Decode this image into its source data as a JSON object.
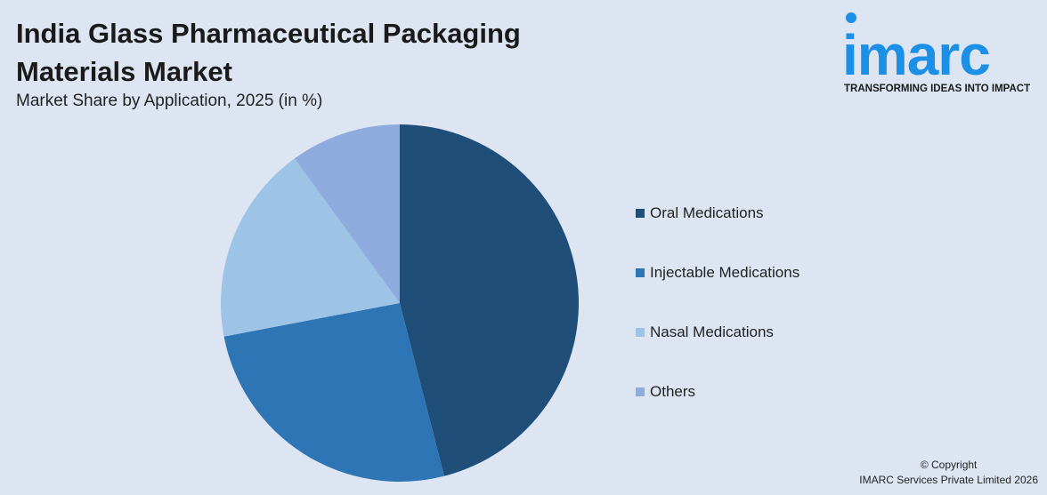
{
  "header": {
    "title": "India Glass Pharmaceutical Packaging Materials Market",
    "subtitle": "Market Share by Application, 2025 (in %)"
  },
  "logo": {
    "word": "imarc",
    "tagline": "TRANSFORMING IDEAS INTO IMPACT"
  },
  "footer": {
    "copyright_line1": "© Copyright",
    "copyright_line2": "IMARC Services Private Limited 2026"
  },
  "chart_data": {
    "type": "pie",
    "title": "India Glass Pharmaceutical Packaging Materials Market",
    "subtitle": "Market Share by Application, 2025 (in %)",
    "legend_position": "right",
    "start_angle_deg": 0,
    "direction": "clockwise",
    "categories": [
      "Oral Medications",
      "Injectable Medications",
      "Nasal Medications",
      "Others"
    ],
    "values": [
      46,
      26,
      18,
      10
    ],
    "colors": [
      "#1f4e79",
      "#2e75b6",
      "#9dc3e6",
      "#8faadc"
    ]
  }
}
